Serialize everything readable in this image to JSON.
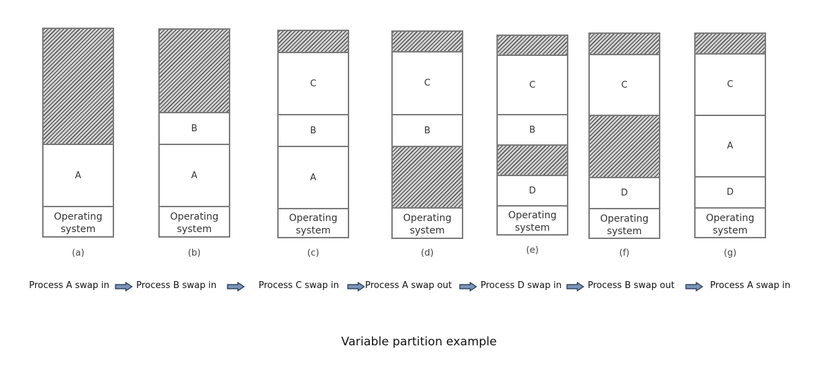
{
  "diagram": {
    "title": "Variable partition example",
    "os_label": "Operating system",
    "columns": [
      {
        "caption": "(a)",
        "segments": [
          {
            "label": "",
            "free": true
          },
          {
            "label": "A"
          },
          {
            "label": "Operating system",
            "os": true
          }
        ]
      },
      {
        "caption": "(b)",
        "segments": [
          {
            "label": "",
            "free": true
          },
          {
            "label": "B"
          },
          {
            "label": "A"
          },
          {
            "label": "Operating system",
            "os": true
          }
        ]
      },
      {
        "caption": "(c)",
        "segments": [
          {
            "label": "",
            "free": true
          },
          {
            "label": "C"
          },
          {
            "label": "B"
          },
          {
            "label": "A"
          },
          {
            "label": "Operating system",
            "os": true
          }
        ]
      },
      {
        "caption": "(d)",
        "segments": [
          {
            "label": "",
            "free": true
          },
          {
            "label": "C"
          },
          {
            "label": "B"
          },
          {
            "label": "",
            "free": true
          },
          {
            "label": "Operating system",
            "os": true
          }
        ]
      },
      {
        "caption": "(e)",
        "segments": [
          {
            "label": "",
            "free": true
          },
          {
            "label": "C"
          },
          {
            "label": "B"
          },
          {
            "label": "",
            "free": true
          },
          {
            "label": "D"
          },
          {
            "label": "Operating system",
            "os": true
          }
        ]
      },
      {
        "caption": "(f)",
        "segments": [
          {
            "label": "",
            "free": true
          },
          {
            "label": "C"
          },
          {
            "label": "",
            "free": true
          },
          {
            "label": "D"
          },
          {
            "label": "Operating system",
            "os": true
          }
        ]
      },
      {
        "caption": "(g)",
        "segments": [
          {
            "label": "",
            "free": true
          },
          {
            "label": "C"
          },
          {
            "label": "A"
          },
          {
            "label": "D"
          },
          {
            "label": "Operating system",
            "os": true
          }
        ]
      }
    ],
    "steps": [
      "Process A swap in",
      "Process B swap in",
      "Process C swap in",
      "Process A swap out",
      "Process D swap in",
      "Process B swap out",
      "Process A swap in"
    ],
    "colors": {
      "border": "#7a7a7a",
      "arrow_fill": "#7b93b8",
      "arrow_stroke": "#1f2f4a"
    }
  }
}
